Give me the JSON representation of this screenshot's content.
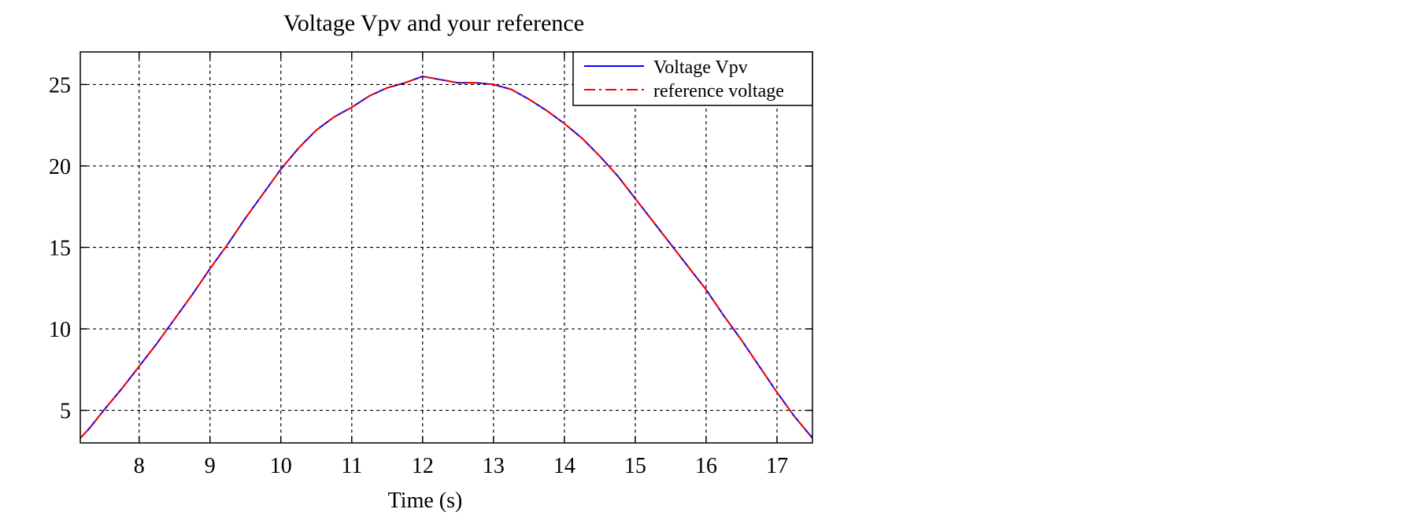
{
  "chart_data": {
    "type": "line",
    "title": "Voltage Vpv and your reference",
    "xlabel": "Time (s)",
    "ylabel": "",
    "xlim": [
      7.17,
      17.5
    ],
    "ylim": [
      3,
      27
    ],
    "xticks": [
      8,
      9,
      10,
      11,
      12,
      13,
      14,
      15,
      16,
      17
    ],
    "yticks": [
      5,
      10,
      15,
      20,
      25
    ],
    "grid": true,
    "grid_style": "dashed",
    "legend_position": "top-right",
    "series": [
      {
        "name": "Voltage Vpv",
        "color": "#0000ff",
        "line_style": "solid",
        "x": [
          7.17,
          7.3,
          7.5,
          7.75,
          8.0,
          8.25,
          8.5,
          8.75,
          9.0,
          9.25,
          9.5,
          9.75,
          10.0,
          10.25,
          10.5,
          10.75,
          11.0,
          11.25,
          11.5,
          11.75,
          12.0,
          12.25,
          12.5,
          12.75,
          13.0,
          13.25,
          13.5,
          13.75,
          14.0,
          14.25,
          14.5,
          14.75,
          15.0,
          15.25,
          15.5,
          15.75,
          16.0,
          16.25,
          16.5,
          16.75,
          17.0,
          17.25,
          17.5
        ],
        "values": [
          3.3,
          3.9,
          5.0,
          6.3,
          7.7,
          9.1,
          10.6,
          12.1,
          13.7,
          15.2,
          16.8,
          18.3,
          19.8,
          21.1,
          22.2,
          23.0,
          23.6,
          24.3,
          24.8,
          25.1,
          25.5,
          25.3,
          25.1,
          25.1,
          25.0,
          24.7,
          24.1,
          23.4,
          22.6,
          21.7,
          20.6,
          19.4,
          18.0,
          16.6,
          15.2,
          13.8,
          12.4,
          10.8,
          9.3,
          7.7,
          6.1,
          4.6,
          3.3
        ]
      },
      {
        "name": "reference voltage",
        "color": "#ff0000",
        "line_style": "dash-dot",
        "x": [
          7.17,
          7.3,
          7.5,
          7.75,
          8.0,
          8.25,
          8.5,
          8.75,
          9.0,
          9.25,
          9.5,
          9.75,
          10.0,
          10.25,
          10.5,
          10.75,
          11.0,
          11.25,
          11.5,
          11.75,
          12.0,
          12.25,
          12.5,
          12.75,
          13.0,
          13.25,
          13.5,
          13.75,
          14.0,
          14.25,
          14.5,
          14.75,
          15.0,
          15.25,
          15.5,
          15.75,
          16.0,
          16.25,
          16.5,
          16.75,
          17.0,
          17.25,
          17.5
        ],
        "values": [
          3.3,
          3.9,
          5.0,
          6.3,
          7.7,
          9.1,
          10.6,
          12.1,
          13.7,
          15.2,
          16.8,
          18.3,
          19.8,
          21.1,
          22.2,
          23.0,
          23.6,
          24.3,
          24.8,
          25.1,
          25.5,
          25.3,
          25.1,
          25.1,
          25.0,
          24.7,
          24.1,
          23.4,
          22.6,
          21.7,
          20.6,
          19.4,
          18.0,
          16.6,
          15.2,
          13.8,
          12.4,
          10.8,
          9.3,
          7.7,
          6.1,
          4.6,
          3.3
        ]
      }
    ]
  }
}
